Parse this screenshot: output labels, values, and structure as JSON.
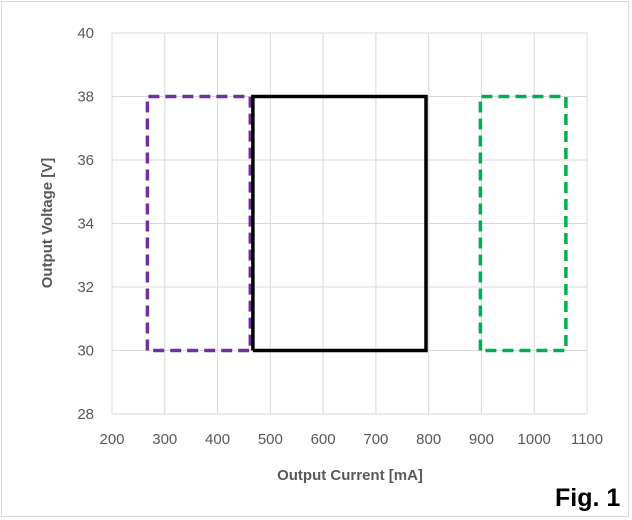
{
  "chart_data": {
    "type": "scatter",
    "title": "",
    "xlabel": "Output Current [mA]",
    "ylabel": "Output Voltage [V]",
    "xlim": [
      200,
      1100
    ],
    "ylim": [
      28,
      40
    ],
    "xticks": [
      200,
      300,
      400,
      500,
      600,
      700,
      800,
      900,
      1000,
      1100
    ],
    "yticks": [
      28,
      30,
      32,
      34,
      36,
      38,
      40
    ],
    "grid": true,
    "legend": "none",
    "annotation": "Fig. 1",
    "series": [
      {
        "style": "dashed",
        "color": "#7030A0",
        "x": [
          267,
          267,
          462,
          462,
          267
        ],
        "y": [
          30,
          38,
          38,
          30,
          30
        ]
      },
      {
        "style": "solid",
        "color": "#000000",
        "x": [
          467,
          467,
          795,
          795,
          467
        ],
        "y": [
          30,
          38,
          38,
          30,
          30
        ]
      },
      {
        "style": "dashed",
        "color": "#00B050",
        "x": [
          898,
          898,
          1060,
          1060,
          898
        ],
        "y": [
          30,
          38,
          38,
          30,
          30
        ]
      }
    ]
  }
}
